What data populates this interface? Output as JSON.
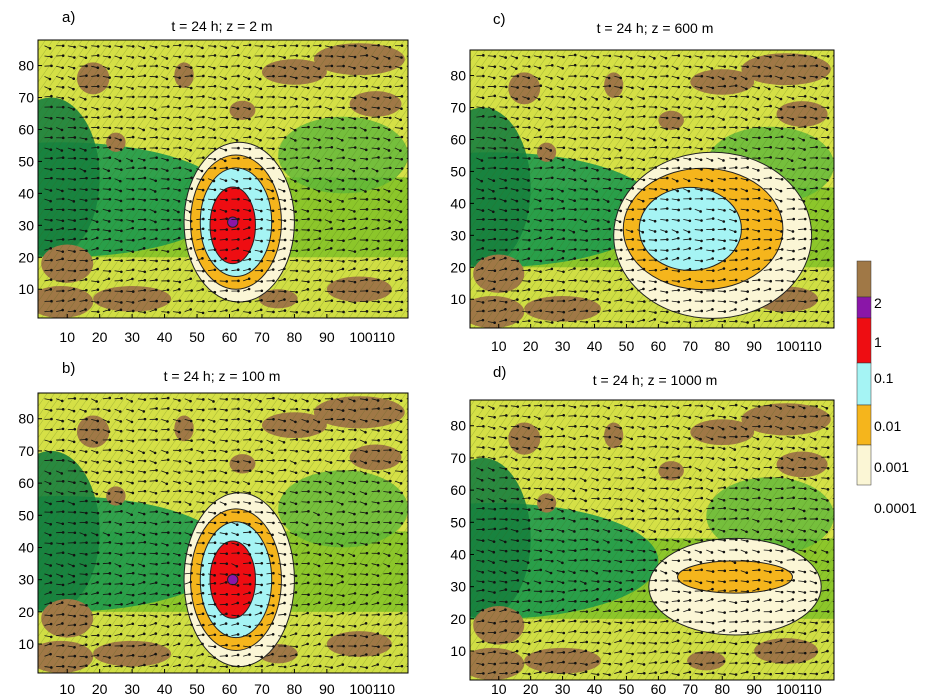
{
  "chart_data": [
    {
      "type": "heatmap",
      "panel_label": "a)",
      "title": "t = 24 h; z = 2 m",
      "x_ticks": [
        "10",
        "20",
        "30",
        "40",
        "50",
        "60",
        "70",
        "80",
        "90",
        "100110"
      ],
      "y_ticks": [
        "10",
        "20",
        "30",
        "40",
        "50",
        "60",
        "70",
        "80"
      ],
      "xlim": [
        1,
        115
      ],
      "ylim": [
        1,
        88
      ],
      "plume": {
        "center": [
          61,
          30
        ],
        "levels": [
          {
            "value": "0.0001",
            "color": "#fbf6d5",
            "rx": 17,
            "ry": 25,
            "cx": 63,
            "cy": 31
          },
          {
            "value": "0.001",
            "color": "#f5b51c",
            "rx": 14,
            "ry": 21,
            "cx": 62,
            "cy": 31
          },
          {
            "value": "0.01",
            "color": "#a5f4f4",
            "rx": 11,
            "ry": 17,
            "cx": 62,
            "cy": 31
          },
          {
            "value": "0.1",
            "color": "#ee0d12",
            "rx": 7,
            "ry": 12,
            "cx": 61,
            "cy": 30
          },
          {
            "value": "1",
            "color": "#8a16a8",
            "rx": 1.6,
            "ry": 1.6,
            "cx": 61,
            "cy": 31
          }
        ]
      }
    },
    {
      "type": "heatmap",
      "panel_label": "b)",
      "title": "t = 24 h; z = 100 m",
      "x_ticks": [
        "10",
        "20",
        "30",
        "40",
        "50",
        "60",
        "70",
        "80",
        "90",
        "100110"
      ],
      "y_ticks": [
        "10",
        "20",
        "30",
        "40",
        "50",
        "60",
        "70",
        "80"
      ],
      "xlim": [
        1,
        115
      ],
      "ylim": [
        1,
        88
      ],
      "plume": {
        "center": [
          61,
          30
        ],
        "levels": [
          {
            "value": "0.0001",
            "color": "#fbf6d5",
            "rx": 17,
            "ry": 27,
            "cx": 63,
            "cy": 30
          },
          {
            "value": "0.001",
            "color": "#f5b51c",
            "rx": 14,
            "ry": 22,
            "cx": 62,
            "cy": 30
          },
          {
            "value": "0.01",
            "color": "#a5f4f4",
            "rx": 11,
            "ry": 18,
            "cx": 62,
            "cy": 30
          },
          {
            "value": "0.1",
            "color": "#ee0d12",
            "rx": 7,
            "ry": 12,
            "cx": 61,
            "cy": 30
          },
          {
            "value": "1",
            "color": "#8a16a8",
            "rx": 1.6,
            "ry": 1.6,
            "cx": 61,
            "cy": 30
          }
        ]
      }
    },
    {
      "type": "heatmap",
      "panel_label": "c)",
      "title": "t = 24 h; z = 600 m",
      "x_ticks": [
        "10",
        "20",
        "30",
        "40",
        "50",
        "60",
        "70",
        "80",
        "90",
        "100110"
      ],
      "y_ticks": [
        "10",
        "20",
        "30",
        "40",
        "50",
        "60",
        "70",
        "80"
      ],
      "xlim": [
        1,
        115
      ],
      "ylim": [
        1,
        88
      ],
      "plume": {
        "center": [
          70,
          30
        ],
        "levels": [
          {
            "value": "0.0001",
            "color": "#fbf6d5",
            "rx": 31,
            "ry": 26,
            "cx": 77,
            "cy": 30
          },
          {
            "value": "0.001",
            "color": "#f5b51c",
            "rx": 25,
            "ry": 19,
            "cx": 74,
            "cy": 32
          },
          {
            "value": "0.01",
            "color": "#a5f4f4",
            "rx": 16,
            "ry": 13,
            "cx": 70,
            "cy": 32
          }
        ]
      }
    },
    {
      "type": "heatmap",
      "panel_label": "d)",
      "title": "t = 24 h; z = 1000 m",
      "x_ticks": [
        "10",
        "20",
        "30",
        "40",
        "50",
        "60",
        "70",
        "80",
        "90",
        "100110"
      ],
      "y_ticks": [
        "10",
        "20",
        "30",
        "40",
        "50",
        "60",
        "70",
        "80"
      ],
      "xlim": [
        1,
        115
      ],
      "ylim": [
        1,
        88
      ],
      "plume": {
        "center": [
          80,
          32
        ],
        "levels": [
          {
            "value": "0.0001",
            "color": "#fbf6d5",
            "rx": 27,
            "ry": 15,
            "cx": 84,
            "cy": 30
          },
          {
            "value": "0.001",
            "color": "#f5b51c",
            "rx": 18,
            "ry": 5,
            "cx": 84,
            "cy": 33
          }
        ]
      }
    }
  ],
  "colorbar": {
    "labels": [
      "2",
      "1",
      "0.1",
      "0.01",
      "0.001",
      "0.0001"
    ],
    "colors": [
      "#a07846",
      "#8a16a8",
      "#ee0d12",
      "#a5f4f4",
      "#f5b51c",
      "#fbf6d5"
    ]
  },
  "terrain_colors": {
    "low": "#1e9a4c",
    "mid": "#8cc62a",
    "high": "#e7e64d",
    "peak": "#a07846"
  }
}
